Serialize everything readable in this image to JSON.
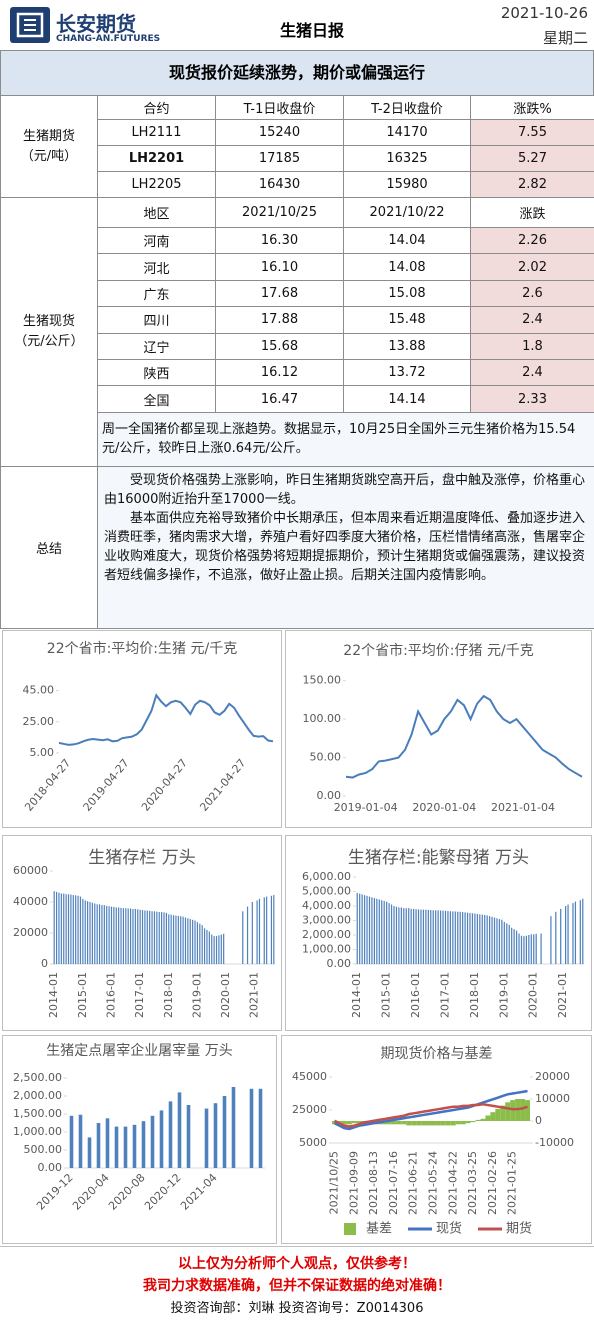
{
  "header": {
    "company": "长安期货",
    "company_en": "CHANG-AN.FUTURES",
    "title": "生猪日报",
    "date": "2021-10-26",
    "weekday": "星期二"
  },
  "banner": "现货报价延续涨势，期价或偏强运行",
  "futures": {
    "label": "生猪期货",
    "unit": "（元/吨）",
    "columns": [
      "合约",
      "T-1日收盘价",
      "T-2日收盘价",
      "涨跌%"
    ],
    "rows": [
      [
        "LH2111",
        "15240",
        "14170",
        "7.55"
      ],
      [
        "LH2201",
        "17185",
        "16325",
        "5.27"
      ],
      [
        "LH2205",
        "16430",
        "15980",
        "2.82"
      ]
    ]
  },
  "spot": {
    "label": "生猪现货",
    "unit": "（元/公斤）",
    "columns": [
      "地区",
      "2021/10/25",
      "2021/10/22",
      "涨跌"
    ],
    "rows": [
      [
        "河南",
        "16.30",
        "14.04",
        "2.26"
      ],
      [
        "河北",
        "16.10",
        "14.08",
        "2.02"
      ],
      [
        "广东",
        "17.68",
        "15.08",
        "2.6"
      ],
      [
        "四川",
        "17.88",
        "15.48",
        "2.4"
      ],
      [
        "辽宁",
        "15.68",
        "13.88",
        "1.8"
      ],
      [
        "陕西",
        "16.12",
        "13.72",
        "2.4"
      ],
      [
        "全国",
        "16.47",
        "14.14",
        "2.33"
      ]
    ],
    "note": "周一全国猪价都呈现上涨趋势。数据显示，10月25日全国外三元生猪价格为15.54元/公斤，较昨日上涨0.64元/公斤。"
  },
  "summary": {
    "label": "总结",
    "paragraphs": [
      "受现货价格强势上涨影响，昨日生猪期货跳空高开后，盘中触及涨停，价格重心由16000附近抬升至17000一线。",
      "基本面供应充裕导致猪价中长期承压，但本周来看近期温度降低、叠加逐步进入消费旺季，猪肉需求大增，养殖户看好四季度大猪价格，压栏惜情绪高涨，售屠宰企业收购难度大，现货价格强势将短期提振期价，预计生猪期货或偏强震荡，建议投资者短线偏多操作，不追涨，做好止盈止损。后期关注国内疫情影响。"
    ]
  },
  "chart_data": [
    {
      "type": "line",
      "title": "22个省市:平均价:生猪 元/千克",
      "categories": [
        null,
        null,
        "2018-04-27",
        null,
        null,
        null,
        null,
        null,
        null,
        null,
        null,
        null,
        null,
        null,
        "2019-04-27",
        null,
        null,
        null,
        null,
        null,
        null,
        null,
        null,
        null,
        null,
        null,
        "2020-04-27",
        null,
        null,
        null,
        null,
        null,
        null,
        null,
        null,
        null,
        null,
        null,
        "2021-04-27",
        null,
        null,
        null,
        null,
        null,
        null
      ],
      "series": [
        {
          "color": "#4a7ebb",
          "values": [
            11.5,
            10.8,
            10.2,
            10.5,
            11.2,
            12.5,
            13.5,
            14.0,
            13.6,
            13.2,
            13.8,
            12.5,
            12.8,
            14.5,
            15.0,
            15.5,
            17.0,
            20.0,
            26.0,
            32.0,
            42.0,
            38.0,
            35.0,
            37.5,
            38.5,
            37.5,
            34.0,
            30.0,
            36.0,
            38.5,
            37.5,
            35.5,
            31.0,
            29.5,
            32.0,
            36.5,
            34.0,
            29.0,
            24.5,
            20.0,
            16.0,
            15.5,
            15.8,
            13.0,
            12.5
          ]
        }
      ],
      "ylim": [
        5,
        55
      ],
      "yticks": [
        {
          "value": 5,
          "label": "5.00"
        },
        {
          "value": 25,
          "label": "25.00"
        },
        {
          "value": 45,
          "label": "45.00"
        }
      ]
    },
    {
      "type": "line",
      "title": "22个省市:平均价:仔猪 元/千克",
      "categories": [
        null,
        null,
        null,
        "2019-01-04",
        null,
        null,
        null,
        null,
        null,
        null,
        null,
        null,
        null,
        null,
        null,
        "2020-01-04",
        null,
        null,
        null,
        null,
        null,
        null,
        null,
        null,
        null,
        null,
        null,
        "2021-01-04",
        null,
        null,
        null,
        null,
        null,
        null,
        null,
        null,
        null
      ],
      "series": [
        {
          "color": "#4a7ebb",
          "values": [
            25,
            24,
            28,
            30,
            35,
            45,
            46,
            48,
            50,
            60,
            80,
            110,
            95,
            80,
            85,
            100,
            110,
            125,
            118,
            100,
            120,
            130,
            125,
            110,
            100,
            95,
            100,
            90,
            80,
            70,
            60,
            55,
            50,
            42,
            35,
            30,
            25
          ]
        }
      ],
      "ylim": [
        0,
        160
      ],
      "yticks": [
        {
          "value": 0,
          "label": "0.00"
        },
        {
          "value": 50,
          "label": "50.00"
        },
        {
          "value": 100,
          "label": "100.00"
        },
        {
          "value": 150,
          "label": "150.00"
        }
      ]
    },
    {
      "type": "bar",
      "title": "生猪存栏 万头",
      "categories": [
        "2014-01",
        null,
        null,
        null,
        null,
        null,
        null,
        null,
        null,
        null,
        null,
        null,
        "2015-01",
        null,
        null,
        null,
        null,
        null,
        null,
        null,
        null,
        null,
        null,
        null,
        "2016-01",
        null,
        null,
        null,
        null,
        null,
        null,
        null,
        null,
        null,
        null,
        null,
        "2017-01",
        null,
        null,
        null,
        null,
        null,
        null,
        null,
        null,
        null,
        null,
        null,
        "2018-01",
        null,
        null,
        null,
        null,
        null,
        null,
        null,
        null,
        null,
        null,
        null,
        "2019-01",
        null,
        null,
        null,
        null,
        null,
        null,
        null,
        null,
        null,
        null,
        null,
        "2020-01",
        null,
        null,
        null,
        null,
        null,
        null,
        null,
        null,
        null,
        null,
        null,
        "2021-01",
        null,
        null,
        null,
        null,
        null,
        null,
        null,
        null
      ],
      "series": [
        {
          "color": "#4f81bd",
          "values": [
            47000,
            46500,
            46000,
            45500,
            45500,
            45000,
            45000,
            44800,
            44500,
            44300,
            44000,
            43500,
            42000,
            41000,
            40500,
            40000,
            39500,
            39000,
            38500,
            38500,
            38000,
            38000,
            37500,
            37200,
            37000,
            36800,
            36500,
            36500,
            36200,
            36000,
            36000,
            35800,
            35800,
            35500,
            35500,
            35300,
            35000,
            34800,
            34500,
            34500,
            34300,
            34000,
            34000,
            33800,
            33500,
            33500,
            33300,
            33000,
            32000,
            31800,
            31500,
            31200,
            31000,
            30800,
            30500,
            30000,
            29500,
            29000,
            28500,
            28000,
            27000,
            26000,
            25000,
            23000,
            22000,
            21000,
            19000,
            18000,
            18000,
            18500,
            19000,
            19500,
            null,
            null,
            null,
            null,
            null,
            null,
            null,
            34000,
            null,
            37000,
            null,
            40000,
            null,
            41000,
            42000,
            null,
            43000,
            43500,
            null,
            44000,
            44500
          ]
        }
      ],
      "ylim": [
        0,
        60000
      ],
      "yticks": [
        0,
        20000,
        40000,
        60000
      ]
    },
    {
      "type": "bar",
      "title": "生猪存栏:能繁母猪 万头",
      "categories": [
        "2014-01",
        null,
        null,
        null,
        null,
        null,
        null,
        null,
        null,
        null,
        null,
        null,
        "2015-01",
        null,
        null,
        null,
        null,
        null,
        null,
        null,
        null,
        null,
        null,
        null,
        "2016-01",
        null,
        null,
        null,
        null,
        null,
        null,
        null,
        null,
        null,
        null,
        null,
        "2017-01",
        null,
        null,
        null,
        null,
        null,
        null,
        null,
        null,
        null,
        null,
        null,
        "2018-01",
        null,
        null,
        null,
        null,
        null,
        null,
        null,
        null,
        null,
        null,
        null,
        "2019-01",
        null,
        null,
        null,
        null,
        null,
        null,
        null,
        null,
        null,
        null,
        null,
        "2020-01",
        null,
        null,
        null,
        null,
        null,
        null,
        null,
        null,
        null,
        null,
        null,
        "2021-01",
        null,
        null,
        null,
        null,
        null,
        null,
        null,
        null
      ],
      "series": [
        {
          "color": "#4f81bd",
          "values": [
            4900,
            4850,
            4800,
            4750,
            4700,
            4650,
            4600,
            4550,
            4500,
            4450,
            4400,
            4350,
            4300,
            4200,
            4100,
            4000,
            3950,
            3900,
            3900,
            3850,
            3850,
            3850,
            3800,
            3800,
            3780,
            3760,
            3750,
            3750,
            3740,
            3730,
            3720,
            3710,
            3700,
            3700,
            3690,
            3680,
            3670,
            3650,
            3640,
            3630,
            3620,
            3610,
            3600,
            3580,
            3560,
            3540,
            3520,
            3500,
            3480,
            3450,
            3420,
            3400,
            3380,
            3350,
            3300,
            3250,
            3200,
            3150,
            3100,
            3050,
            2900,
            2800,
            2700,
            2500,
            2400,
            2300,
            2100,
            1950,
            1920,
            1950,
            2000,
            2050,
            2050,
            2080,
            null,
            2100,
            null,
            null,
            null,
            3300,
            null,
            3600,
            null,
            3800,
            null,
            4000,
            4100,
            null,
            4200,
            4300,
            null,
            4400,
            4500
          ]
        }
      ],
      "ylim": [
        0,
        6000
      ],
      "yticks": [
        {
          "value": 0,
          "label": "0.00"
        },
        {
          "value": 1000,
          "label": "1,000.00"
        },
        {
          "value": 2000,
          "label": "2,000.00"
        },
        {
          "value": 3000,
          "label": "3,000.00"
        },
        {
          "value": 4000,
          "label": "4,000.00"
        },
        {
          "value": 5000,
          "label": "5,000.00"
        },
        {
          "value": 6000,
          "label": "6,000.00"
        }
      ]
    },
    {
      "type": "bar",
      "title": "生猪定点屠宰企业屠宰量 万头",
      "categories": [
        "2019-12",
        null,
        null,
        null,
        "2020-04",
        null,
        null,
        null,
        "2020-08",
        null,
        null,
        null,
        "2020-12",
        null,
        null,
        null,
        "2021-04",
        null,
        null,
        null,
        null,
        null
      ],
      "series": [
        {
          "color": "#4f81bd",
          "values": [
            1450,
            1480,
            850,
            1250,
            1380,
            1150,
            1150,
            1200,
            1300,
            1450,
            1600,
            1850,
            2100,
            1750,
            null,
            1650,
            1800,
            2000,
            2250,
            null,
            2200,
            2200
          ]
        }
      ],
      "ylim": [
        0,
        2500
      ],
      "yticks": [
        {
          "value": 0,
          "label": "0.00"
        },
        {
          "value": 500,
          "label": "500.00"
        },
        {
          "value": 1000,
          "label": "1,000.00"
        },
        {
          "value": 1500,
          "label": "1,500.00"
        },
        {
          "value": 2000,
          "label": "2,000.00"
        },
        {
          "value": 2500,
          "label": "2,500.00"
        }
      ]
    },
    {
      "type": "combo",
      "title": "期现货价格与基差",
      "categories": [
        "2021/10/25",
        null,
        null,
        null,
        "2021-09-09",
        null,
        null,
        null,
        "2021-08-13",
        null,
        null,
        null,
        "2021-07-16",
        null,
        null,
        null,
        "2021-06-21",
        null,
        null,
        null,
        "2021-05-24",
        null,
        null,
        null,
        "2021-04-22",
        null,
        null,
        null,
        "2021-03-25",
        null,
        null,
        null,
        "2021-02-26",
        null,
        null,
        null,
        "2021-01-25",
        null,
        null,
        null
      ],
      "series": [
        {
          "name": "基差",
          "type": "bar",
          "axis": "y2",
          "color": "#8cbd4a",
          "values": [
            -1500,
            -1500,
            -1500,
            -1500,
            -1000,
            -1000,
            -1500,
            -1500,
            -1500,
            -1500,
            -1500,
            -1500,
            -1500,
            -1500,
            -1500,
            -2000,
            -2000,
            -2000,
            -2000,
            -2000,
            -2000,
            -2000,
            -2000,
            -2000,
            -2000,
            -1500,
            -1500,
            -1000,
            -500,
            500,
            1000,
            2500,
            4000,
            5500,
            7000,
            8500,
            9500,
            10000,
            10000,
            9500
          ]
        },
        {
          "name": "现货",
          "type": "line",
          "color": "#4472c4",
          "values": [
            17000,
            15500,
            14000,
            13500,
            14500,
            15500,
            16000,
            16500,
            17000,
            17500,
            18000,
            18500,
            19000,
            19500,
            20000,
            20500,
            21000,
            21500,
            22000,
            22500,
            23000,
            23500,
            24000,
            24500,
            25000,
            25500,
            26000,
            26500,
            27500,
            28500,
            29500,
            30500,
            31500,
            32500,
            33500,
            34500,
            35000,
            35500,
            36000,
            36500
          ]
        },
        {
          "name": "期货",
          "type": "line",
          "color": "#c0504d",
          "values": [
            18500,
            17000,
            15500,
            15000,
            15500,
            16500,
            17500,
            18000,
            18500,
            19000,
            19500,
            20000,
            20500,
            21000,
            21500,
            22500,
            23000,
            23500,
            24000,
            24500,
            25000,
            25500,
            26000,
            26500,
            27000,
            27000,
            27500,
            27500,
            28000,
            28000,
            28500,
            28000,
            27500,
            27000,
            26500,
            26000,
            25500,
            25500,
            26000,
            27000
          ]
        }
      ],
      "ylim": [
        5000,
        45000
      ],
      "yticks": [
        5000,
        25000,
        45000
      ],
      "y2lim": [
        -10000,
        20000
      ],
      "y2ticks": [
        -10000,
        0,
        10000,
        20000
      ]
    }
  ],
  "footer": {
    "lines": [
      "以上仅为分析师个人观点，仅供参考！",
      "我司力求数据准确，但并不保证数据的绝对准确！",
      "投资咨询部：刘琳   投资咨询号：Z0014306"
    ]
  }
}
